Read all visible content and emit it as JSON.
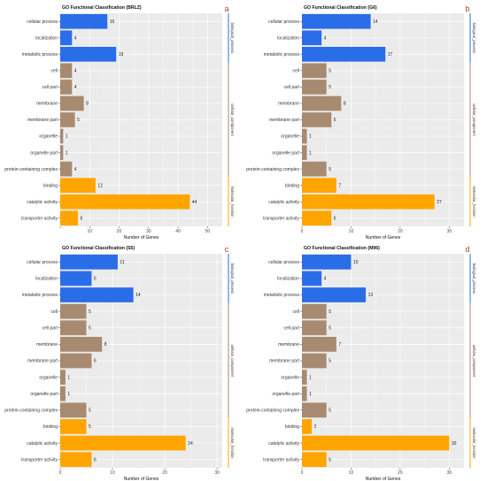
{
  "colors": {
    "biological_process": "#2a6de8",
    "cellular_component": "#a88a70",
    "molecular_function": "#ffa500",
    "panel_background": "#ebebeb",
    "grid": "#ffffff",
    "panel_letter": "#c0392b"
  },
  "group_labels": {
    "biological_process": "biological_process",
    "cellular_component": "cellular_component",
    "molecular_function": "molecular_function"
  },
  "chart_data": [
    {
      "type": "bar",
      "orientation": "horizontal",
      "panel_letter": "a",
      "title": "GO Functional Classification (BRLZ)",
      "xlabel": "Number of Genes",
      "ylabel": "",
      "xlim": [
        0,
        55
      ],
      "xticks": [
        0,
        10,
        20,
        30,
        40,
        50
      ],
      "tick_labels": [
        "",
        "10",
        "20",
        "30",
        "40",
        "50"
      ],
      "grid": true,
      "categories": [
        "cellular process",
        "localization",
        "metabolic process",
        "cell",
        "cell part",
        "membrane",
        "membrane part",
        "organelle",
        "organelle part",
        "protein-containing complex",
        "binding",
        "catalytic activity",
        "transporter activity"
      ],
      "groups": [
        "biological_process",
        "biological_process",
        "biological_process",
        "cellular_component",
        "cellular_component",
        "cellular_component",
        "cellular_component",
        "cellular_component",
        "cellular_component",
        "cellular_component",
        "molecular_function",
        "molecular_function",
        "molecular_function"
      ],
      "values": [
        16,
        4,
        19,
        4,
        4,
        8,
        5,
        1,
        1,
        4,
        12,
        44,
        6
      ]
    },
    {
      "type": "bar",
      "orientation": "horizontal",
      "panel_letter": "b",
      "title": "GO Functional Classification (G6)",
      "xlabel": "Number of Genes",
      "ylabel": "",
      "xlim": [
        0,
        33
      ],
      "xticks": [
        0,
        10,
        20,
        30
      ],
      "tick_labels": [
        "0",
        "10",
        "20",
        "30"
      ],
      "grid": true,
      "categories": [
        "cellular process",
        "localization",
        "metabolic process",
        "cell",
        "cell part",
        "membrane",
        "membrane part",
        "organelle",
        "organelle part",
        "protein-containing complex",
        "binding",
        "catalytic activity",
        "transporter activity"
      ],
      "groups": [
        "biological_process",
        "biological_process",
        "biological_process",
        "cellular_component",
        "cellular_component",
        "cellular_component",
        "cellular_component",
        "cellular_component",
        "cellular_component",
        "cellular_component",
        "molecular_function",
        "molecular_function",
        "molecular_function"
      ],
      "values": [
        14,
        4,
        17,
        5,
        5,
        8,
        6,
        1,
        1,
        5,
        7,
        27,
        6
      ]
    },
    {
      "type": "bar",
      "orientation": "horizontal",
      "panel_letter": "c",
      "title": "GO Functional Classification (S5)",
      "xlabel": "Number of Genes",
      "ylabel": "",
      "xlim": [
        0,
        31
      ],
      "xticks": [
        0,
        10,
        20,
        30
      ],
      "tick_labels": [
        "0",
        "10",
        "20",
        "30"
      ],
      "grid": true,
      "categories": [
        "cellular process",
        "localization",
        "metabolic process",
        "cell",
        "cell part",
        "membrane",
        "membrane part",
        "organelle",
        "organelle part",
        "protein-containing complex",
        "binding",
        "catalytic activity",
        "transporter activity"
      ],
      "groups": [
        "biological_process",
        "biological_process",
        "biological_process",
        "cellular_component",
        "cellular_component",
        "cellular_component",
        "cellular_component",
        "cellular_component",
        "cellular_component",
        "cellular_component",
        "molecular_function",
        "molecular_function",
        "molecular_function"
      ],
      "values": [
        11,
        6,
        14,
        5,
        5,
        8,
        6,
        1,
        1,
        5,
        5,
        24,
        6
      ]
    },
    {
      "type": "bar",
      "orientation": "horizontal",
      "panel_letter": "d",
      "title": "GO Functional Classification (M96)",
      "xlabel": "Number of Genes",
      "ylabel": "",
      "xlim": [
        0,
        33
      ],
      "xticks": [
        0,
        10,
        20,
        30
      ],
      "tick_labels": [
        "0",
        "10",
        "20",
        "30"
      ],
      "grid": true,
      "categories": [
        "cellular process",
        "localization",
        "metabolic process",
        "cell",
        "cell part",
        "membrane",
        "membrane part",
        "organelle",
        "organelle part",
        "protein-containing complex",
        "binding",
        "catalytic activity",
        "transporter activity"
      ],
      "groups": [
        "biological_process",
        "biological_process",
        "biological_process",
        "cellular_component",
        "cellular_component",
        "cellular_component",
        "cellular_component",
        "cellular_component",
        "cellular_component",
        "cellular_component",
        "molecular_function",
        "molecular_function",
        "molecular_function"
      ],
      "values": [
        10,
        4,
        13,
        5,
        5,
        7,
        5,
        1,
        1,
        5,
        2,
        30,
        5
      ]
    }
  ]
}
